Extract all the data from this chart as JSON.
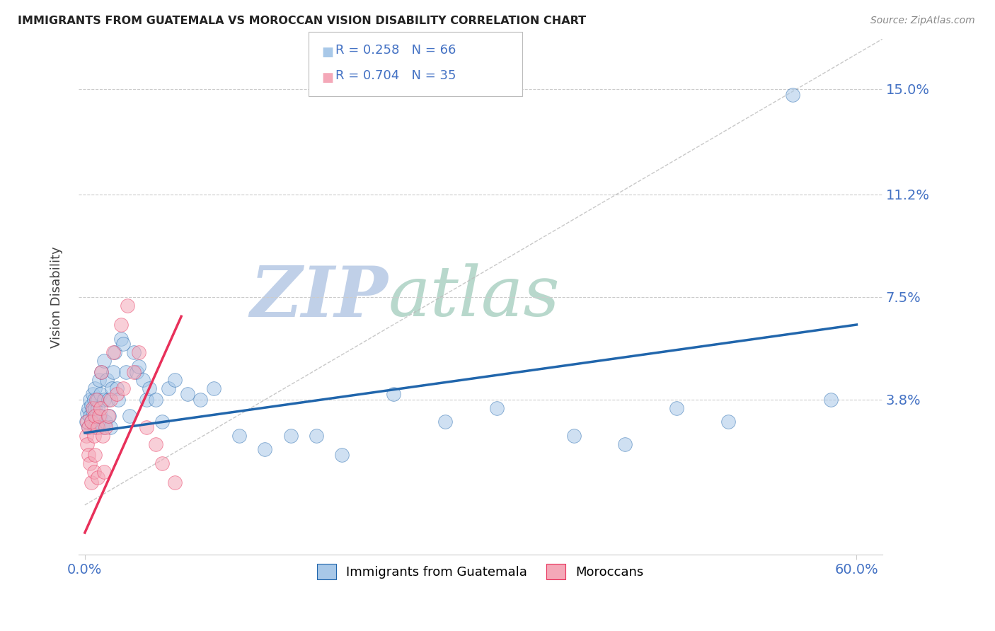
{
  "title": "IMMIGRANTS FROM GUATEMALA VS MOROCCAN VISION DISABILITY CORRELATION CHART",
  "source": "Source: ZipAtlas.com",
  "ylabel": "Vision Disability",
  "ytick_labels": [
    "15.0%",
    "11.2%",
    "7.5%",
    "3.8%"
  ],
  "ytick_values": [
    0.15,
    0.112,
    0.075,
    0.038
  ],
  "xlim": [
    -0.005,
    0.62
  ],
  "ylim": [
    -0.018,
    0.168
  ],
  "legend_blue_R": "R = 0.258",
  "legend_blue_N": "N = 66",
  "legend_pink_R": "R = 0.704",
  "legend_pink_N": "N = 35",
  "legend_blue_label": "Immigrants from Guatemala",
  "legend_pink_label": "Moroccans",
  "blue_color": "#a8c8e8",
  "pink_color": "#f4a8b8",
  "trendline_blue_color": "#2166ac",
  "trendline_pink_color": "#e8305a",
  "title_color": "#222222",
  "axis_label_color": "#444444",
  "tick_label_color": "#4472c4",
  "watermark_zip_color": "#c8d8f0",
  "watermark_atlas_color": "#d8e8e0",
  "blue_scatter_x": [
    0.001,
    0.002,
    0.003,
    0.003,
    0.004,
    0.004,
    0.005,
    0.005,
    0.006,
    0.006,
    0.007,
    0.007,
    0.008,
    0.008,
    0.009,
    0.009,
    0.01,
    0.01,
    0.011,
    0.012,
    0.012,
    0.013,
    0.014,
    0.015,
    0.015,
    0.016,
    0.017,
    0.018,
    0.019,
    0.02,
    0.021,
    0.022,
    0.023,
    0.025,
    0.026,
    0.028,
    0.03,
    0.032,
    0.035,
    0.038,
    0.04,
    0.042,
    0.045,
    0.048,
    0.05,
    0.055,
    0.06,
    0.065,
    0.07,
    0.08,
    0.09,
    0.1,
    0.12,
    0.14,
    0.16,
    0.18,
    0.2,
    0.24,
    0.28,
    0.32,
    0.38,
    0.42,
    0.46,
    0.5,
    0.55,
    0.58
  ],
  "blue_scatter_y": [
    0.03,
    0.033,
    0.028,
    0.035,
    0.032,
    0.038,
    0.03,
    0.036,
    0.034,
    0.04,
    0.028,
    0.038,
    0.035,
    0.042,
    0.032,
    0.03,
    0.038,
    0.035,
    0.045,
    0.032,
    0.04,
    0.048,
    0.028,
    0.052,
    0.038,
    0.03,
    0.045,
    0.038,
    0.032,
    0.028,
    0.042,
    0.048,
    0.055,
    0.042,
    0.038,
    0.06,
    0.058,
    0.048,
    0.032,
    0.055,
    0.048,
    0.05,
    0.045,
    0.038,
    0.042,
    0.038,
    0.03,
    0.042,
    0.045,
    0.04,
    0.038,
    0.042,
    0.025,
    0.02,
    0.025,
    0.025,
    0.018,
    0.04,
    0.03,
    0.035,
    0.025,
    0.022,
    0.035,
    0.03,
    0.148,
    0.038
  ],
  "pink_scatter_x": [
    0.001,
    0.002,
    0.002,
    0.003,
    0.003,
    0.004,
    0.005,
    0.005,
    0.006,
    0.007,
    0.007,
    0.008,
    0.008,
    0.009,
    0.01,
    0.01,
    0.011,
    0.012,
    0.013,
    0.014,
    0.015,
    0.016,
    0.018,
    0.02,
    0.022,
    0.025,
    0.028,
    0.03,
    0.033,
    0.038,
    0.042,
    0.048,
    0.055,
    0.06,
    0.07
  ],
  "pink_scatter_y": [
    0.025,
    0.022,
    0.03,
    0.018,
    0.028,
    0.015,
    0.03,
    0.008,
    0.035,
    0.025,
    0.012,
    0.032,
    0.018,
    0.038,
    0.028,
    0.01,
    0.032,
    0.035,
    0.048,
    0.025,
    0.012,
    0.028,
    0.032,
    0.038,
    0.055,
    0.04,
    0.065,
    0.042,
    0.072,
    0.048,
    0.055,
    0.028,
    0.022,
    0.015,
    0.008
  ],
  "ref_line_x": [
    0.0,
    0.62
  ],
  "ref_line_y": [
    0.0,
    0.168
  ],
  "blue_trend_x": [
    0.0,
    0.6
  ],
  "blue_trend_y": [
    0.026,
    0.065
  ],
  "pink_trend_x": [
    0.0,
    0.075
  ],
  "pink_trend_y": [
    -0.01,
    0.068
  ]
}
